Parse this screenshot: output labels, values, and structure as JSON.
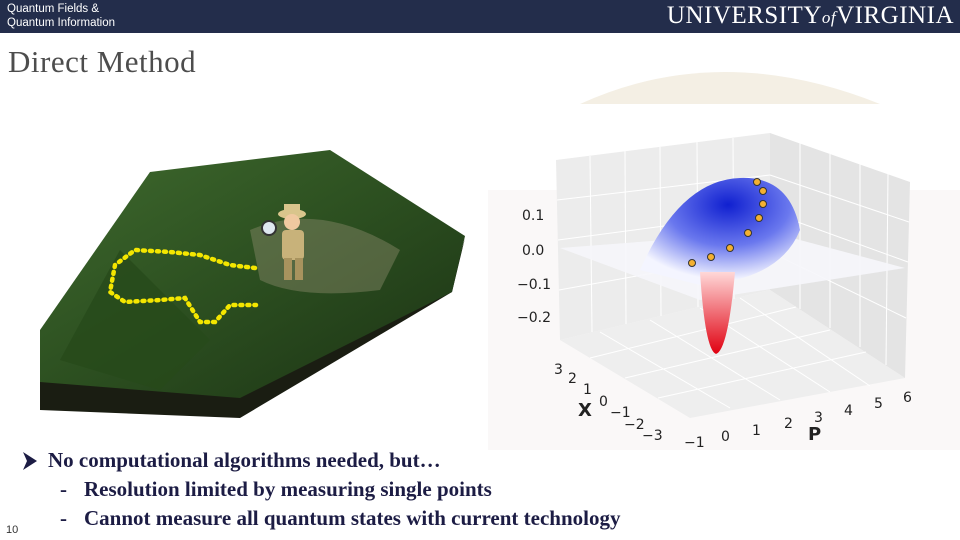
{
  "header": {
    "course": [
      "Quantum Fields &",
      "Quantum Information"
    ],
    "logo": {
      "main": "UNIVERSITY",
      "of": "of",
      "end": "VIRGINIA"
    }
  },
  "title": "Direct Method",
  "figure": {
    "z_ticks": [
      "0.1",
      "0.0",
      "−0.1",
      "−0.2"
    ],
    "x_label": "X",
    "x_ticks": [
      "3",
      "2",
      "1",
      "0",
      "−1",
      "−2",
      "−3"
    ],
    "p_label": "P",
    "p_ticks": [
      "−1",
      "0",
      "1",
      "2",
      "3",
      "4",
      "5",
      "6"
    ]
  },
  "bullets": [
    {
      "text": "No computational algorithms needed, but…",
      "sub": [
        {
          "marker": "-",
          "text": "Resolution limited by measuring single points"
        },
        {
          "marker": "-",
          "text": "Cannot measure all quantum states with current technology"
        }
      ]
    }
  ],
  "page_number": "10"
}
